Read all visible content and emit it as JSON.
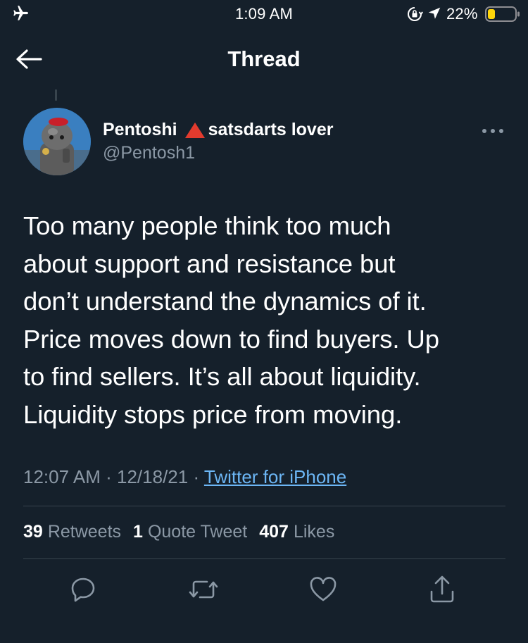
{
  "status_bar": {
    "time": "1:09 AM",
    "battery_percent": "22%",
    "icons": [
      "airplane-icon",
      "rotation-lock-icon",
      "location-icon",
      "battery-icon"
    ]
  },
  "header": {
    "title": "Thread",
    "back_icon": "back-arrow-icon"
  },
  "tweet": {
    "author": {
      "name_part1": "Pentoshi",
      "emoji": "warning-triangle-icon",
      "name_part2": "satsdarts lover",
      "handle": "@Pentosh1"
    },
    "text_lines": [
      "Too many people think too much",
      "about support and resistance but",
      "don’t understand the dynamics of it.",
      "Price moves down to find buyers. Up",
      "to find sellers. It’s all about liquidity.",
      "Liquidity stops price from moving."
    ],
    "time": "12:07 AM",
    "date": "12/18/21",
    "separator": "·",
    "source": "Twitter for iPhone",
    "stats": {
      "retweets_count": "39",
      "retweets_label": "Retweets",
      "quotes_count": "1",
      "quotes_label": "Quote Tweet",
      "likes_count": "407",
      "likes_label": "Likes"
    },
    "actions": [
      "reply-icon",
      "retweet-icon",
      "like-icon",
      "share-icon"
    ]
  },
  "colors": {
    "background": "#15202b",
    "text": "#ffffff",
    "secondary_text": "#8b98a5",
    "link": "#6cb6f5",
    "divider": "#38444d",
    "battery_low": "#ffd60a"
  }
}
